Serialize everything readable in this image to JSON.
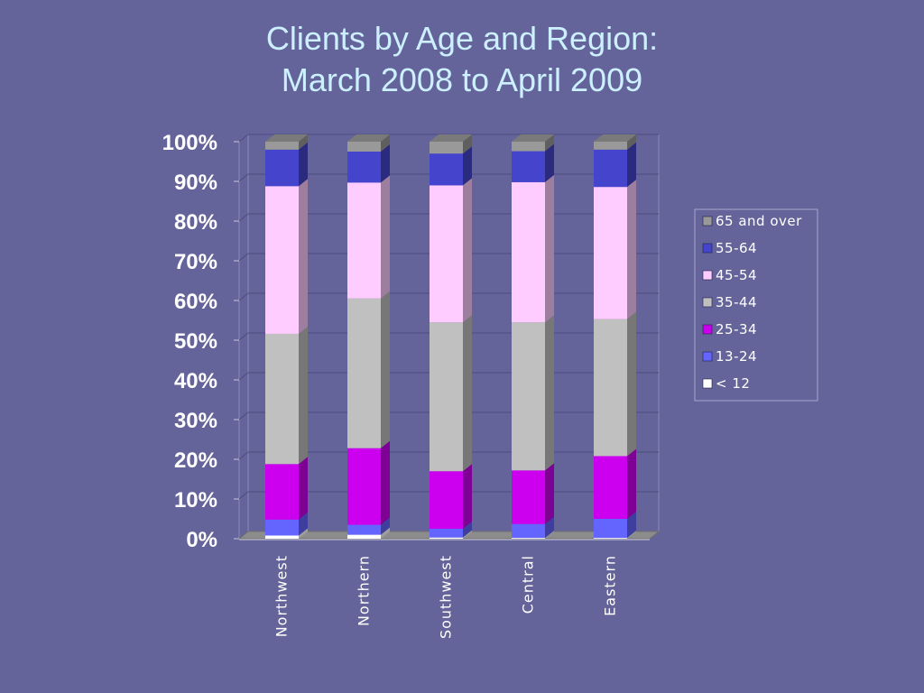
{
  "title": {
    "line1": "Clients by Age and Region:",
    "line2": "March 2008 to April 2009"
  },
  "colors": {
    "background": "#64649a",
    "title": "#ccf0ff"
  },
  "chart_data": {
    "type": "bar",
    "stacked": true,
    "three_d": true,
    "percent_scale": true,
    "categories": [
      "Northwest",
      "Northern",
      "Southwest",
      "Central",
      "Eastern"
    ],
    "ylim": [
      0,
      100
    ],
    "y_ticks": [
      "0%",
      "10%",
      "20%",
      "30%",
      "40%",
      "50%",
      "60%",
      "70%",
      "80%",
      "90%",
      "100%"
    ],
    "grid": true,
    "legend_position": "right",
    "series": [
      {
        "name": "< 12",
        "color": "#ffffff",
        "values": [
          0.8,
          1.0,
          0.3,
          0.2,
          0.2
        ]
      },
      {
        "name": "13-24",
        "color": "#6464ff",
        "values": [
          4.0,
          2.5,
          2.2,
          3.5,
          4.8
        ]
      },
      {
        "name": "25-34",
        "color": "#cc00ee",
        "values": [
          14.0,
          19.3,
          14.5,
          13.5,
          15.8
        ]
      },
      {
        "name": "35-44",
        "color": "#c0c0c0",
        "values": [
          32.8,
          37.7,
          37.5,
          37.3,
          34.5
        ]
      },
      {
        "name": "45-54",
        "color": "#ffccff",
        "values": [
          37.2,
          29.2,
          34.5,
          35.3,
          33.3
        ]
      },
      {
        "name": "55-64",
        "color": "#4444cc",
        "values": [
          9.2,
          7.8,
          8.0,
          7.8,
          9.4
        ]
      },
      {
        "name": "65 and over",
        "color": "#999999",
        "values": [
          2.0,
          2.5,
          3.0,
          2.4,
          2.0
        ]
      }
    ]
  }
}
